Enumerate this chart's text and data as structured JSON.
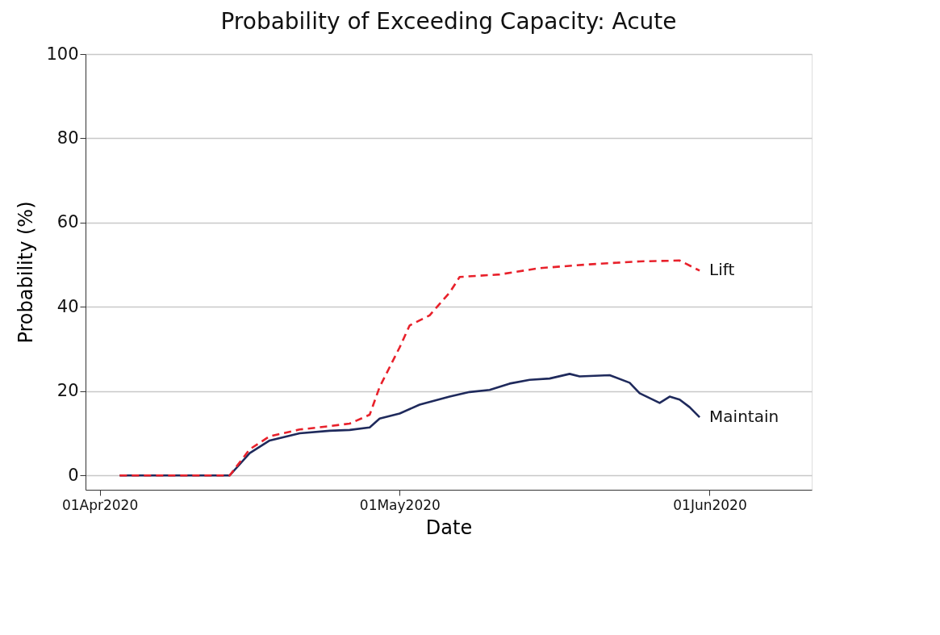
{
  "chart_data": {
    "type": "line",
    "title": "Probability of Exceeding Capacity: Acute",
    "xlabel": "Date",
    "ylabel": "Probability (%)",
    "xlim": [
      "2020-03-30T14:00",
      "2020-06-11T05:00"
    ],
    "xticks": [
      {
        "value": "2020-04-01",
        "label": "01Apr2020"
      },
      {
        "value": "2020-05-01",
        "label": "01May2020"
      },
      {
        "value": "2020-06-01",
        "label": "01Jun2020"
      }
    ],
    "ylim": [
      -3.4,
      100
    ],
    "yticks": [
      0,
      20,
      40,
      60,
      80,
      100
    ],
    "grid": "y",
    "legend": false,
    "marker": "none",
    "series": [
      {
        "name": "Lift",
        "color": "#e8212b",
        "line_style": "dashed",
        "x": [
          "2020-04-03",
          "2020-04-14",
          "2020-04-16",
          "2020-04-18",
          "2020-04-21",
          "2020-04-24",
          "2020-04-26",
          "2020-04-28",
          "2020-04-29",
          "2020-05-01",
          "2020-05-02",
          "2020-05-04",
          "2020-05-06",
          "2020-05-07",
          "2020-05-11",
          "2020-05-15",
          "2020-05-20",
          "2020-05-25",
          "2020-05-29",
          "2020-05-31"
        ],
        "values": [
          0,
          0,
          6.2,
          9.3,
          10.9,
          11.7,
          12.3,
          14.4,
          21.0,
          30.4,
          35.6,
          38.0,
          43.4,
          47.1,
          47.7,
          49.2,
          50.1,
          50.8,
          51.0,
          48.6
        ]
      },
      {
        "name": "Maintain",
        "color": "#1f2a5c",
        "line_style": "solid",
        "x": [
          "2020-04-03",
          "2020-04-14",
          "2020-04-16",
          "2020-04-18",
          "2020-04-21",
          "2020-04-24",
          "2020-04-26",
          "2020-04-28",
          "2020-04-29",
          "2020-05-01",
          "2020-05-03",
          "2020-05-06",
          "2020-05-08",
          "2020-05-10",
          "2020-05-12",
          "2020-05-14",
          "2020-05-16",
          "2020-05-18",
          "2020-05-19",
          "2020-05-22",
          "2020-05-24",
          "2020-05-25",
          "2020-05-27",
          "2020-05-28",
          "2020-05-29",
          "2020-05-30",
          "2020-05-31"
        ],
        "values": [
          0,
          0,
          5.3,
          8.3,
          10.0,
          10.6,
          10.8,
          11.4,
          13.5,
          14.7,
          16.8,
          18.7,
          19.8,
          20.3,
          21.8,
          22.7,
          23.0,
          24.1,
          23.5,
          23.8,
          22.0,
          19.5,
          17.2,
          18.7,
          18.0,
          16.2,
          13.8
        ]
      }
    ]
  }
}
